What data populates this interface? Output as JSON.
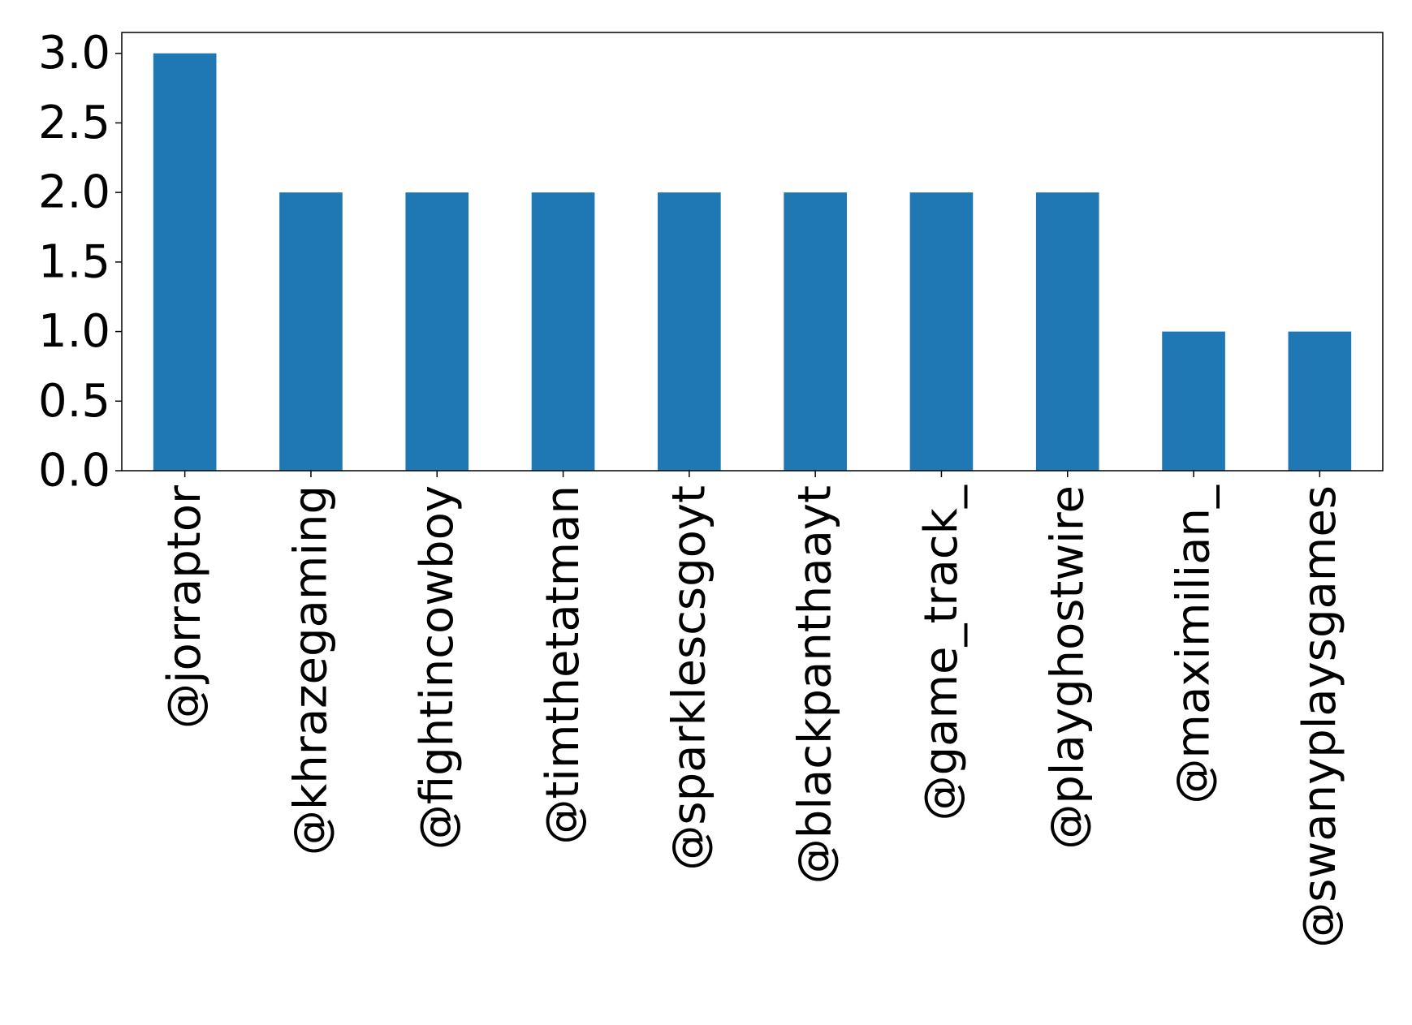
{
  "chart_data": {
    "type": "bar",
    "title": "",
    "xlabel": "",
    "ylabel": "",
    "categories": [
      "@jorraptor",
      "@khrazegaming",
      "@fightincowboy",
      "@timthetatman",
      "@sparklescsgoyt",
      "@blackpanthaayt",
      "@game_track_",
      "@playghostwire",
      "@maximilian_",
      "@swanyplaysgames"
    ],
    "values": [
      3,
      2,
      2,
      2,
      2,
      2,
      2,
      2,
      1,
      1
    ],
    "ylim": [
      0,
      3.15
    ],
    "yticks": [
      "0.0",
      "0.5",
      "1.0",
      "1.5",
      "2.0",
      "2.5",
      "3.0"
    ],
    "grid": false,
    "legend": "none",
    "bar_color": "#1f77b4"
  }
}
